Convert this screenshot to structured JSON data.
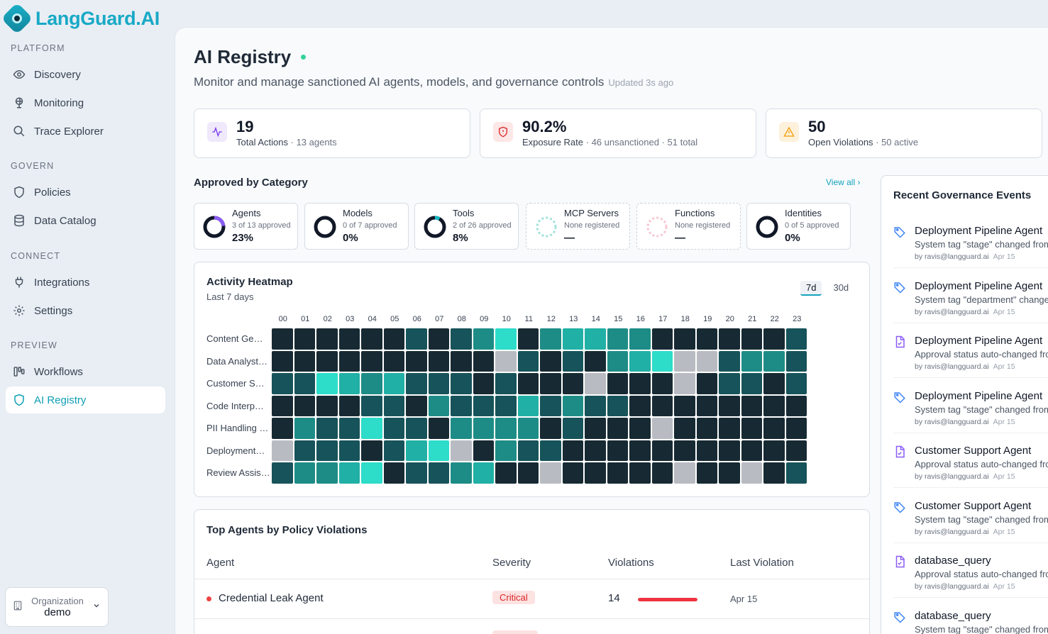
{
  "app": {
    "logo_text": "LangGuard.AI"
  },
  "sidebar": {
    "sections": [
      {
        "label": "PLATFORM",
        "items": [
          {
            "label": "Discovery",
            "icon": "eye-icon"
          },
          {
            "label": "Monitoring",
            "icon": "globe-icon"
          },
          {
            "label": "Trace Explorer",
            "icon": "search-icon"
          }
        ]
      },
      {
        "label": "GOVERN",
        "items": [
          {
            "label": "Policies",
            "icon": "shield-icon"
          },
          {
            "label": "Data Catalog",
            "icon": "database-icon"
          }
        ]
      },
      {
        "label": "CONNECT",
        "items": [
          {
            "label": "Integrations",
            "icon": "plug-icon"
          },
          {
            "label": "Settings",
            "icon": "gear-icon"
          }
        ]
      },
      {
        "label": "PREVIEW",
        "items": [
          {
            "label": "Workflows",
            "icon": "workflow-icon"
          },
          {
            "label": "AI Registry",
            "icon": "shield-icon",
            "active": true
          }
        ]
      }
    ],
    "org": {
      "label": "Organization",
      "value": "demo"
    }
  },
  "page": {
    "title": "AI Registry",
    "subtitle": "Monitor and manage sanctioned AI agents, models, and governance controls",
    "updated": "Updated 3s ago"
  },
  "stats": [
    {
      "value": "19",
      "label": "Total Actions",
      "detail": "· 13 agents",
      "icon": "activity-icon",
      "color": "#7c3aed",
      "bg": "#efe9fb"
    },
    {
      "value": "90.2%",
      "label": "Exposure Rate",
      "detail": "· 46 unsanctioned · 51 total",
      "icon": "shield-alert-icon",
      "color": "#dc2626",
      "bg": "#fde7e7"
    },
    {
      "value": "50",
      "label": "Open Violations",
      "detail": "· 50 active",
      "icon": "warning-icon",
      "color": "#f59e0b",
      "bg": "#fdf1dc"
    }
  ],
  "categories": {
    "title": "Approved by Category",
    "view_all": "View all",
    "items": [
      {
        "name": "Agents",
        "sub": "3 of 13 approved",
        "pct": "23%",
        "fraction": 0.23,
        "ring_color": "#8b5cf6",
        "dashed": false
      },
      {
        "name": "Models",
        "sub": "0 of 7 approved",
        "pct": "0%",
        "fraction": 0,
        "ring_color": "#111827",
        "dashed": false
      },
      {
        "name": "Tools",
        "sub": "2 of 26 approved",
        "pct": "8%",
        "fraction": 0.08,
        "ring_color": "#14b8c4",
        "dashed": false
      },
      {
        "name": "MCP Servers",
        "sub": "None registered",
        "pct": "—",
        "fraction": 0,
        "ring_color": "#9fe3db",
        "dashed": true
      },
      {
        "name": "Functions",
        "sub": "None registered",
        "pct": "—",
        "fraction": 0,
        "ring_color": "#f7c6d2",
        "dashed": true
      },
      {
        "name": "Identities",
        "sub": "0 of 5 approved",
        "pct": "0%",
        "fraction": 0,
        "ring_color": "#111827",
        "dashed": false
      }
    ]
  },
  "heatmap": {
    "title": "Activity Heatmap",
    "subtitle": "Last 7 days",
    "tabs": [
      {
        "label": "7d",
        "active": true
      },
      {
        "label": "30d",
        "active": false
      }
    ],
    "hours": [
      "00",
      "01",
      "02",
      "03",
      "04",
      "05",
      "06",
      "07",
      "08",
      "09",
      "10",
      "11",
      "12",
      "13",
      "14",
      "15",
      "16",
      "17",
      "18",
      "19",
      "20",
      "21",
      "22",
      "23"
    ],
    "rows": [
      {
        "label": "Content Ge…",
        "levels": [
          1,
          1,
          1,
          1,
          1,
          1,
          2,
          1,
          2,
          3,
          5,
          1,
          3,
          4,
          4,
          3,
          3,
          1,
          1,
          1,
          1,
          1,
          1,
          2
        ]
      },
      {
        "label": "Data Analyst…",
        "levels": [
          1,
          1,
          1,
          1,
          1,
          1,
          1,
          1,
          1,
          1,
          0,
          2,
          1,
          2,
          1,
          3,
          4,
          5,
          0,
          0,
          2,
          3,
          3,
          2
        ]
      },
      {
        "label": "Customer S…",
        "levels": [
          2,
          2,
          5,
          4,
          3,
          4,
          2,
          2,
          2,
          1,
          2,
          1,
          1,
          1,
          0,
          1,
          1,
          1,
          0,
          1,
          2,
          2,
          1,
          2
        ]
      },
      {
        "label": "Code Interp…",
        "levels": [
          1,
          1,
          1,
          1,
          2,
          2,
          1,
          3,
          2,
          2,
          2,
          4,
          2,
          3,
          2,
          2,
          1,
          1,
          1,
          1,
          1,
          1,
          1,
          1
        ]
      },
      {
        "label": "PII Handling …",
        "levels": [
          1,
          3,
          2,
          2,
          5,
          2,
          2,
          1,
          3,
          3,
          3,
          3,
          1,
          2,
          1,
          1,
          1,
          0,
          1,
          1,
          1,
          1,
          1,
          1
        ]
      },
      {
        "label": "Deployment…",
        "levels": [
          0,
          2,
          2,
          2,
          1,
          2,
          4,
          5,
          0,
          1,
          3,
          2,
          2,
          1,
          1,
          1,
          1,
          1,
          1,
          1,
          1,
          1,
          1,
          1
        ]
      },
      {
        "label": "Review Assis…",
        "levels": [
          2,
          3,
          3,
          4,
          5,
          1,
          2,
          2,
          3,
          4,
          1,
          1,
          0,
          1,
          1,
          1,
          1,
          1,
          0,
          1,
          1,
          0,
          1,
          2
        ]
      }
    ],
    "palette": [
      "#b8bcc2",
      "#172a33",
      "#17535a",
      "#1e8c86",
      "#21b0a5",
      "#2ddcc9"
    ]
  },
  "violations": {
    "title": "Top Agents by Policy Violations",
    "columns": [
      "Agent",
      "Severity",
      "Violations",
      "Last Violation"
    ],
    "rows": [
      {
        "agent": "Credential Leak Agent",
        "severity": "Critical",
        "violations": "14",
        "bar_fraction": 1.0,
        "last": "Apr 15"
      }
    ]
  },
  "events": {
    "title": "Recent Governance Events",
    "items": [
      {
        "name": "Deployment Pipeline Agent",
        "desc": "System tag \"stage\" changed from",
        "by": "by ravis@langguard.ai",
        "date": "Apr 15",
        "icon": "tag-icon"
      },
      {
        "name": "Deployment Pipeline Agent",
        "desc": "System tag \"department\" changed",
        "by": "by ravis@langguard.ai",
        "date": "Apr 15",
        "icon": "tag-icon"
      },
      {
        "name": "Deployment Pipeline Agent",
        "desc": "Approval status auto-changed fro",
        "by": "by ravis@langguard.ai",
        "date": "Apr 15",
        "icon": "file-icon"
      },
      {
        "name": "Deployment Pipeline Agent",
        "desc": "System tag \"stage\" changed from",
        "by": "by ravis@langguard.ai",
        "date": "Apr 15",
        "icon": "tag-icon"
      },
      {
        "name": "Customer Support Agent",
        "desc": "Approval status auto-changed fro",
        "by": "by ravis@langguard.ai",
        "date": "Apr 15",
        "icon": "file-icon"
      },
      {
        "name": "Customer Support Agent",
        "desc": "System tag \"stage\" changed from",
        "by": "by ravis@langguard.ai",
        "date": "Apr 15",
        "icon": "tag-icon"
      },
      {
        "name": "database_query",
        "desc": "Approval status auto-changed fro",
        "by": "by ravis@langguard.ai",
        "date": "Apr 15",
        "icon": "file-icon"
      },
      {
        "name": "database_query",
        "desc": "System tag \"stage\" changed from",
        "by": "",
        "date": "",
        "icon": "tag-icon"
      }
    ]
  }
}
